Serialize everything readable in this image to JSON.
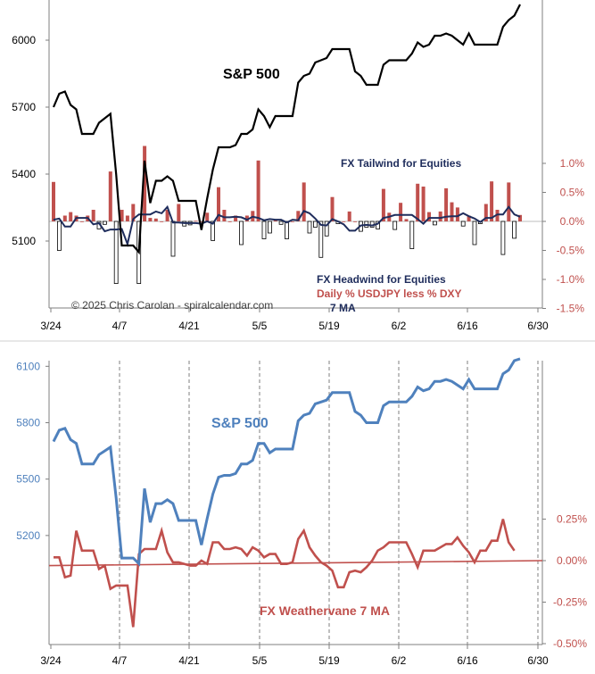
{
  "charts": {
    "top": {
      "sp_label": "S&P 500",
      "tailwind_label": "FX Tailwind for Equities",
      "headwind_label": "FX Headwind for Equities",
      "daily_label": "Daily % USDJPY less % DXY",
      "ma_label": "7 MA",
      "copyright": "© 2025 Chris Carolan - spiralcalendar.com"
    },
    "bottom": {
      "sp_label": "S&P 500",
      "weathervane_label": "FX Weathervane 7 MA"
    }
  },
  "colors": {
    "sp_top": "#000000",
    "ma_top": "#1f2d5c",
    "bars": "#c0504d",
    "sp_bottom": "#4f81bd",
    "fx_bottom": "#c0504d",
    "grid": "#7f7f7f",
    "right_axis_top": "#c0504d",
    "left_axis_bottom": "#4f81bd"
  },
  "chart_data": [
    {
      "type": "line+bar",
      "x_tick_labels": [
        "3/24",
        "4/7",
        "4/21",
        "5/5",
        "5/19",
        "6/2",
        "6/16",
        "6/30"
      ],
      "left_axis": {
        "ticks": [
          "5100",
          "5400",
          "5700",
          "6000"
        ],
        "ylim": [
          4800,
          6180
        ]
      },
      "right_axis": {
        "ticks": [
          "1.0%",
          "0.5%",
          "0.0%",
          "-0.5%",
          "-1.0%",
          "-1.5%"
        ],
        "ylim": [
          -1.5,
          1.5
        ]
      },
      "series": [
        {
          "name": "S&P 500",
          "values": [
            5700,
            5760,
            5770,
            5710,
            5690,
            5580,
            5580,
            5580,
            5630,
            5650,
            5670,
            5400,
            5080,
            5080,
            5080,
            5050,
            5460,
            5270,
            5370,
            5370,
            5390,
            5370,
            5280,
            5280,
            5280,
            5280,
            5150,
            5290,
            5420,
            5520,
            5520,
            5520,
            5530,
            5580,
            5580,
            5600,
            5690,
            5660,
            5610,
            5660,
            5660,
            5660,
            5660,
            5810,
            5840,
            5850,
            5900,
            5910,
            5920,
            5960,
            5960,
            5960,
            5960,
            5860,
            5840,
            5800,
            5800,
            5800,
            5890,
            5910,
            5910,
            5910,
            5910,
            5940,
            5990,
            5970,
            5980,
            6020,
            6020,
            6030,
            6020,
            6000,
            5980,
            6030,
            5980,
            5980,
            5980,
            5980,
            5980,
            6060,
            6090,
            6110,
            6160
          ]
        },
        {
          "name": "Daily % USDJPY less % DXY",
          "values": [
            0.68,
            -0.5,
            0.1,
            0.16,
            0.1,
            0.0,
            0.1,
            0.2,
            -0.13,
            -0.05,
            0.86,
            -1.07,
            0.2,
            0.1,
            0.3,
            -1.07,
            1.3,
            0.06,
            0.05,
            0.0,
            0.2,
            -0.6,
            0.3,
            -0.08,
            -0.06,
            0.01,
            0.0,
            0.15,
            -0.33,
            0.59,
            0.2,
            0.0,
            0.1,
            -0.4,
            0.1,
            0.18,
            1.05,
            -0.3,
            -0.2,
            0.04,
            -0.05,
            -0.3,
            0.0,
            0.18,
            0.67,
            -0.2,
            -0.1,
            -0.62,
            -0.25,
            0.42,
            -0.04,
            0.0,
            0.17,
            0.0,
            -0.17,
            -0.1,
            -0.1,
            -0.13,
            0.56,
            0.15,
            -0.14,
            0.32,
            0.04,
            -0.47,
            0.65,
            0.6,
            0.16,
            -0.06,
            0.17,
            0.57,
            0.33,
            0.24,
            -0.08,
            0.1,
            -0.4,
            -0.04,
            0.3,
            0.69,
            0.2,
            -0.57,
            0.67,
            -0.29,
            0.11
          ]
        },
        {
          "name": "7 MA",
          "values": [
            0.03,
            0.05,
            -0.09,
            -0.09,
            0.06,
            0.06,
            0.06,
            -0.05,
            -0.03,
            -0.17,
            -0.14,
            -0.14,
            -0.13,
            -0.39,
            0.04,
            0.12,
            0.12,
            0.12,
            0.17,
            0.14,
            0.25,
            -0.02,
            -0.02,
            -0.03,
            -0.03,
            -0.03,
            -0.04,
            0.0,
            -0.04,
            0.11,
            0.07,
            0.07,
            0.08,
            0.07,
            0.03,
            0.08,
            0.06,
            0.02,
            0.04,
            0.03,
            0.03,
            -0.02,
            0.03,
            0.02,
            0.18,
            0.14,
            0.05,
            -0.06,
            -0.07,
            0.04,
            0.0,
            -0.05,
            -0.16,
            -0.16,
            -0.07,
            -0.06,
            -0.07,
            -0.04,
            0.06,
            0.08,
            0.11,
            0.11,
            0.11,
            0.11,
            0.04,
            -0.04,
            0.06,
            0.06,
            0.06,
            0.08,
            0.09,
            0.09,
            0.14,
            0.09,
            0.05,
            -0.01,
            0.06,
            0.06,
            0.12,
            0.12,
            0.25,
            0.12,
            0.08
          ]
        }
      ]
    },
    {
      "type": "line",
      "x_tick_labels": [
        "3/24",
        "4/7",
        "4/21",
        "5/5",
        "5/19",
        "6/2",
        "6/16",
        "6/30"
      ],
      "left_axis": {
        "ticks": [
          "5200",
          "5500",
          "5800",
          "6100"
        ],
        "ylim": [
          4620,
          6130
        ]
      },
      "right_axis": {
        "ticks": [
          "0.25%",
          "0.00%",
          "-0.25%",
          "-0.50%"
        ],
        "ylim": [
          -0.5,
          0.62
        ]
      },
      "grid": "vertical dashed",
      "series": [
        {
          "name": "S&P 500",
          "values": [
            5700,
            5760,
            5770,
            5710,
            5690,
            5580,
            5580,
            5580,
            5630,
            5650,
            5670,
            5400,
            5080,
            5080,
            5080,
            5050,
            5450,
            5270,
            5370,
            5370,
            5390,
            5370,
            5280,
            5280,
            5280,
            5280,
            5150,
            5290,
            5420,
            5510,
            5520,
            5520,
            5530,
            5580,
            5580,
            5600,
            5690,
            5690,
            5640,
            5660,
            5660,
            5660,
            5660,
            5810,
            5840,
            5850,
            5900,
            5910,
            5920,
            5960,
            5960,
            5960,
            5960,
            5860,
            5840,
            5800,
            5800,
            5800,
            5890,
            5910,
            5910,
            5910,
            5910,
            5940,
            5990,
            5970,
            5980,
            6020,
            6020,
            6030,
            6020,
            6000,
            5980,
            6030,
            5980,
            5980,
            5980,
            5980,
            5980,
            6060,
            6080,
            6130,
            6140
          ]
        },
        {
          "name": "FX Weathervane 7 MA",
          "values": [
            0.02,
            0.02,
            -0.1,
            -0.09,
            0.18,
            0.06,
            0.06,
            0.06,
            -0.05,
            -0.03,
            -0.17,
            -0.15,
            -0.15,
            -0.15,
            -0.4,
            0.04,
            0.07,
            0.07,
            0.07,
            0.18,
            0.05,
            -0.01,
            -0.01,
            -0.02,
            -0.03,
            -0.03,
            0.0,
            -0.02,
            0.11,
            0.11,
            0.07,
            0.07,
            0.08,
            0.07,
            0.03,
            0.08,
            0.06,
            0.02,
            0.04,
            0.04,
            -0.02,
            -0.02,
            -0.01,
            0.13,
            0.18,
            0.08,
            0.03,
            -0.01,
            -0.03,
            -0.06,
            -0.16,
            -0.16,
            -0.07,
            -0.06,
            -0.07,
            -0.04,
            0.0,
            0.06,
            0.08,
            0.11,
            0.11,
            0.11,
            0.11,
            0.04,
            -0.04,
            0.06,
            0.06,
            0.06,
            0.08,
            0.1,
            0.1,
            0.14,
            0.09,
            0.05,
            -0.01,
            0.06,
            0.06,
            0.12,
            0.12,
            0.25,
            0.11,
            0.06
          ]
        },
        {
          "name": "trend",
          "values": [
            -0.03,
            0.0
          ]
        }
      ]
    }
  ]
}
